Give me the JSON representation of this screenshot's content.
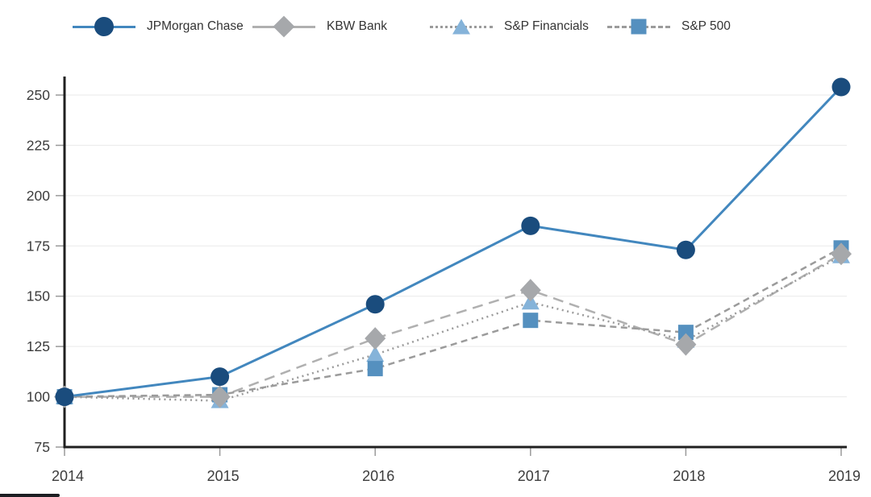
{
  "page": {
    "background": "#ffffff"
  },
  "chart_data": {
    "type": "line",
    "title": "",
    "xlabel": "",
    "ylabel": "",
    "x": [
      2014,
      2015,
      2016,
      2017,
      2018,
      2019
    ],
    "yticks": [
      75,
      100,
      125,
      150,
      175,
      200,
      225,
      250
    ],
    "ylim": [
      75,
      250
    ],
    "grid": "horizontal",
    "legend_position": "top",
    "series": [
      {
        "name": "JPMorgan Chase",
        "values": [
          100,
          110,
          146,
          185,
          173,
          254
        ],
        "marker": "circle",
        "marker_color": "#1a4c7d",
        "line_color": "#4287be",
        "line_style": "solid"
      },
      {
        "name": "KBW Bank",
        "values": [
          100,
          100,
          129,
          153,
          126,
          171
        ],
        "marker": "diamond",
        "marker_color": "#a6a8ab",
        "line_color": "#b0b0b0",
        "line_style": "long-dash"
      },
      {
        "name": "S&P Financials",
        "values": [
          100,
          98,
          121,
          147,
          128,
          170
        ],
        "marker": "triangle",
        "marker_color": "#85b3d9",
        "line_color": "#9b9b9b",
        "line_style": "dotted"
      },
      {
        "name": "S&P 500",
        "values": [
          100,
          101,
          114,
          138,
          132,
          174
        ],
        "marker": "square",
        "marker_color": "#5590bf",
        "line_color": "#9b9b9b",
        "line_style": "dashed"
      }
    ],
    "axis_color": "#202020",
    "gridline_color": "#eaeaea",
    "tick_color": "#9a9a9a",
    "label_color": "#3c3c3c"
  },
  "overlay": {
    "progress_bar_color": "#1c1e22"
  }
}
